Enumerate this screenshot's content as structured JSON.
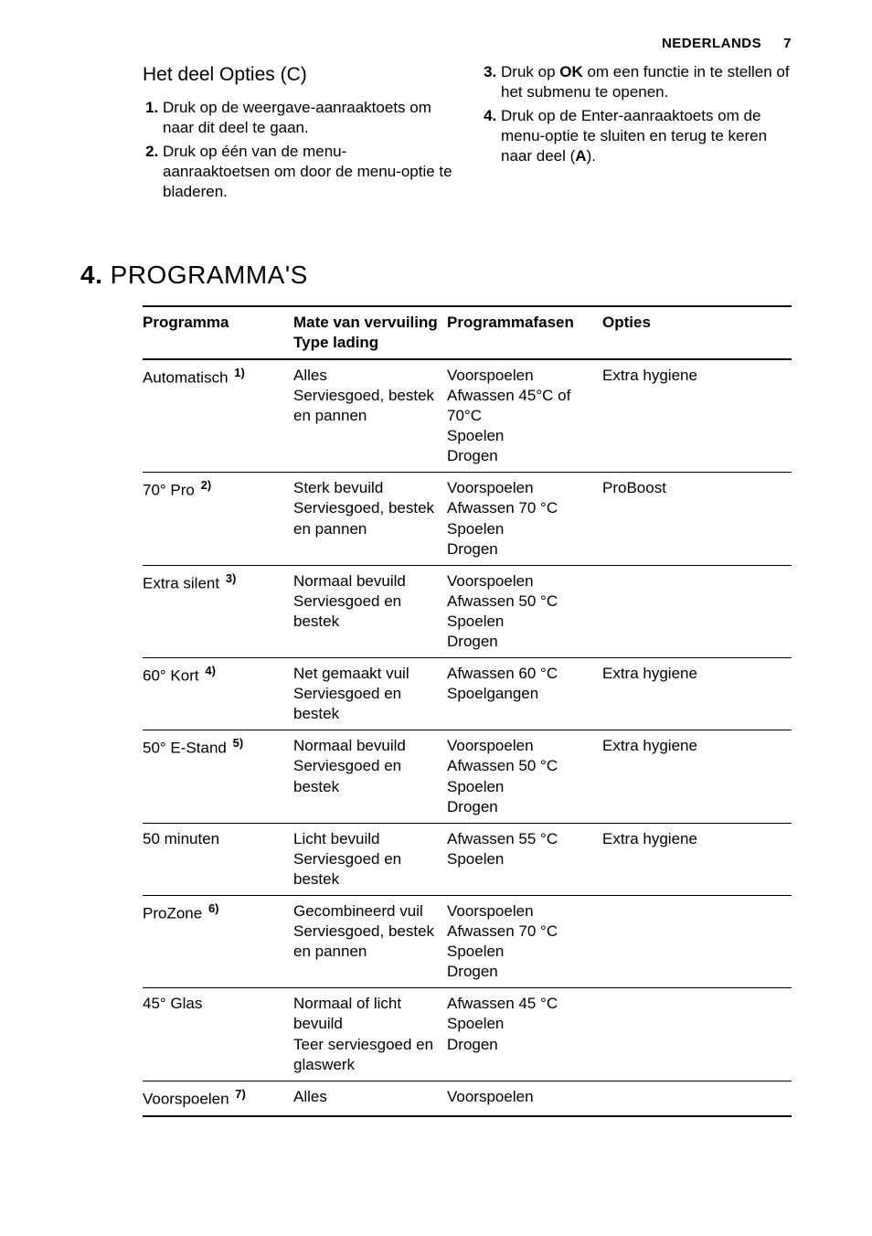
{
  "header": {
    "language": "NEDERLANDS",
    "page_number": "7"
  },
  "subsection": {
    "title": "Het deel Opties (C)",
    "left_steps": [
      "Druk op de weergave-aanraaktoets om naar dit deel te gaan.",
      "Druk op één van de menu-aanraaktoetsen om door de menu-optie te bladeren."
    ],
    "right_steps": [
      {
        "pre": "Druk op ",
        "bold": "OK",
        "post": " om een functie in te stellen of het submenu te openen."
      },
      {
        "pre": "Druk op de Enter-aanraaktoets om de menu-optie te sluiten en terug te keren naar deel (",
        "bold": "A",
        "post": ")."
      }
    ]
  },
  "section": {
    "number": "4.",
    "title": "PROGRAMMA'S"
  },
  "table": {
    "columns": [
      "Programma",
      "Mate van vervuiling\nType lading",
      "Programmafasen",
      "Opties"
    ],
    "rows": [
      {
        "program": "Automatisch",
        "note": "1)",
        "soil": [
          "Alles",
          "Serviesgoed, bestek en pannen"
        ],
        "phases": [
          "Voorspoelen",
          "Afwassen 45°C of 70°C",
          "Spoelen",
          "Drogen"
        ],
        "options": "Extra hygiene"
      },
      {
        "program": "70° Pro",
        "note": "2)",
        "soil": [
          "Sterk bevuild",
          "Serviesgoed, bestek en pannen"
        ],
        "phases": [
          "Voorspoelen",
          "Afwassen 70 °C",
          "Spoelen",
          "Drogen"
        ],
        "options": "ProBoost"
      },
      {
        "program": "Extra silent",
        "note": "3)",
        "soil": [
          "Normaal bevuild",
          "Serviesgoed en bestek"
        ],
        "phases": [
          "Voorspoelen",
          "Afwassen 50 °C",
          "Spoelen",
          "Drogen"
        ],
        "options": ""
      },
      {
        "program": "60° Kort",
        "note": "4)",
        "soil": [
          "Net gemaakt vuil",
          "Serviesgoed en bestek"
        ],
        "phases": [
          "Afwassen 60 °C",
          "Spoelgangen"
        ],
        "options": "Extra hygiene"
      },
      {
        "program": "50° E-Stand",
        "note": "5)",
        "soil": [
          "Normaal bevuild",
          "Serviesgoed en bestek"
        ],
        "phases": [
          "Voorspoelen",
          "Afwassen 50 °C",
          "Spoelen",
          "Drogen"
        ],
        "options": "Extra hygiene"
      },
      {
        "program": "50 minuten",
        "note": "",
        "soil": [
          "Licht bevuild",
          "Serviesgoed en bestek"
        ],
        "phases": [
          "Afwassen 55 °C",
          "Spoelen"
        ],
        "options": "Extra hygiene"
      },
      {
        "program": "ProZone",
        "note": "6)",
        "soil": [
          "Gecombineerd vuil",
          "Serviesgoed, bestek en pannen"
        ],
        "phases": [
          "Voorspoelen",
          "Afwassen 70 °C",
          "Spoelen",
          "Drogen"
        ],
        "options": ""
      },
      {
        "program": "45° Glas",
        "note": "",
        "soil": [
          "Normaal of licht bevuild",
          "Teer serviesgoed en glaswerk"
        ],
        "phases": [
          "Afwassen 45 °C",
          "Spoelen",
          "Drogen"
        ],
        "options": ""
      },
      {
        "program": "Voorspoelen",
        "note": "7)",
        "soil": [
          "Alles"
        ],
        "phases": [
          "Voorspoelen"
        ],
        "options": ""
      }
    ]
  }
}
